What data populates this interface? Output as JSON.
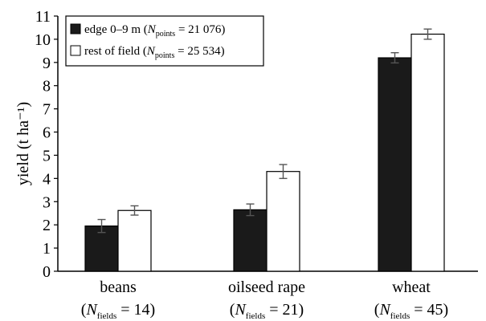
{
  "chart_data": {
    "type": "bar",
    "ylabel": "yield (t ha⁻¹)",
    "ylim": [
      0,
      11
    ],
    "yticks": [
      0,
      1,
      2,
      3,
      4,
      5,
      6,
      7,
      8,
      9,
      10,
      11
    ],
    "categories": [
      "beans",
      "oilseed rape",
      "wheat"
    ],
    "category_sublabels": [
      {
        "prefix": "(",
        "var": "N",
        "sub": "fields",
        "suffix": " = 14)"
      },
      {
        "prefix": "(",
        "var": "N",
        "sub": "fields",
        "suffix": " = 21)"
      },
      {
        "prefix": "(",
        "var": "N",
        "sub": "fields",
        "suffix": " = 45)"
      }
    ],
    "series": [
      {
        "name": "edge 0–9 m",
        "legend_note": {
          "prefix": " (",
          "var": "N",
          "sub": "points",
          "suffix": " = 21 076)"
        },
        "values": [
          1.95,
          2.65,
          9.2
        ],
        "errors": [
          0.28,
          0.25,
          0.22
        ],
        "color": "#1a1a1a"
      },
      {
        "name": "rest of field",
        "legend_note": {
          "prefix": " (",
          "var": "N",
          "sub": "points",
          "suffix": " = 25 534)"
        },
        "values": [
          2.62,
          4.3,
          10.22
        ],
        "errors": [
          0.2,
          0.3,
          0.22
        ],
        "color": "#ffffff"
      }
    ],
    "grid": false,
    "legend_position": "top-left"
  }
}
